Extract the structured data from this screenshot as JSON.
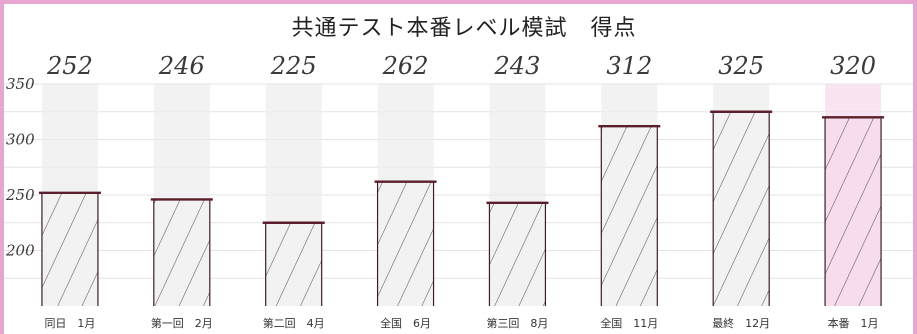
{
  "chart_data": {
    "type": "bar",
    "title": "共通テスト本番レベル模試　得点",
    "xlabel": "",
    "ylabel": "",
    "categories": [
      "同日　1月",
      "第一回　2月",
      "第二回　4月",
      "全国　6月",
      "第三回　8月",
      "全国　11月",
      "最終　12月",
      "本番　1月"
    ],
    "values": [
      252,
      246,
      225,
      262,
      243,
      312,
      325,
      320
    ],
    "value_labels": [
      "252",
      "246",
      "225",
      "262",
      "243",
      "312",
      "325",
      "320"
    ],
    "y_ticks": [
      {
        "value": 200,
        "label": "200"
      },
      {
        "value": 250,
        "label": "250"
      },
      {
        "value": 300,
        "label": "300"
      },
      {
        "value": 350,
        "label": "350"
      }
    ],
    "ylim": [
      150,
      350
    ],
    "bar_fill": "#f2f2f2",
    "highlight_fill": "#f6dcec",
    "highlight_index": 7,
    "bar_outline": "#3b1f24",
    "bar_top_line": "#5a1f2a",
    "hatch_color": "#4a3a3a",
    "background_stripe": "#ededef",
    "frame_color": "#e7a6cf",
    "grid": true
  }
}
